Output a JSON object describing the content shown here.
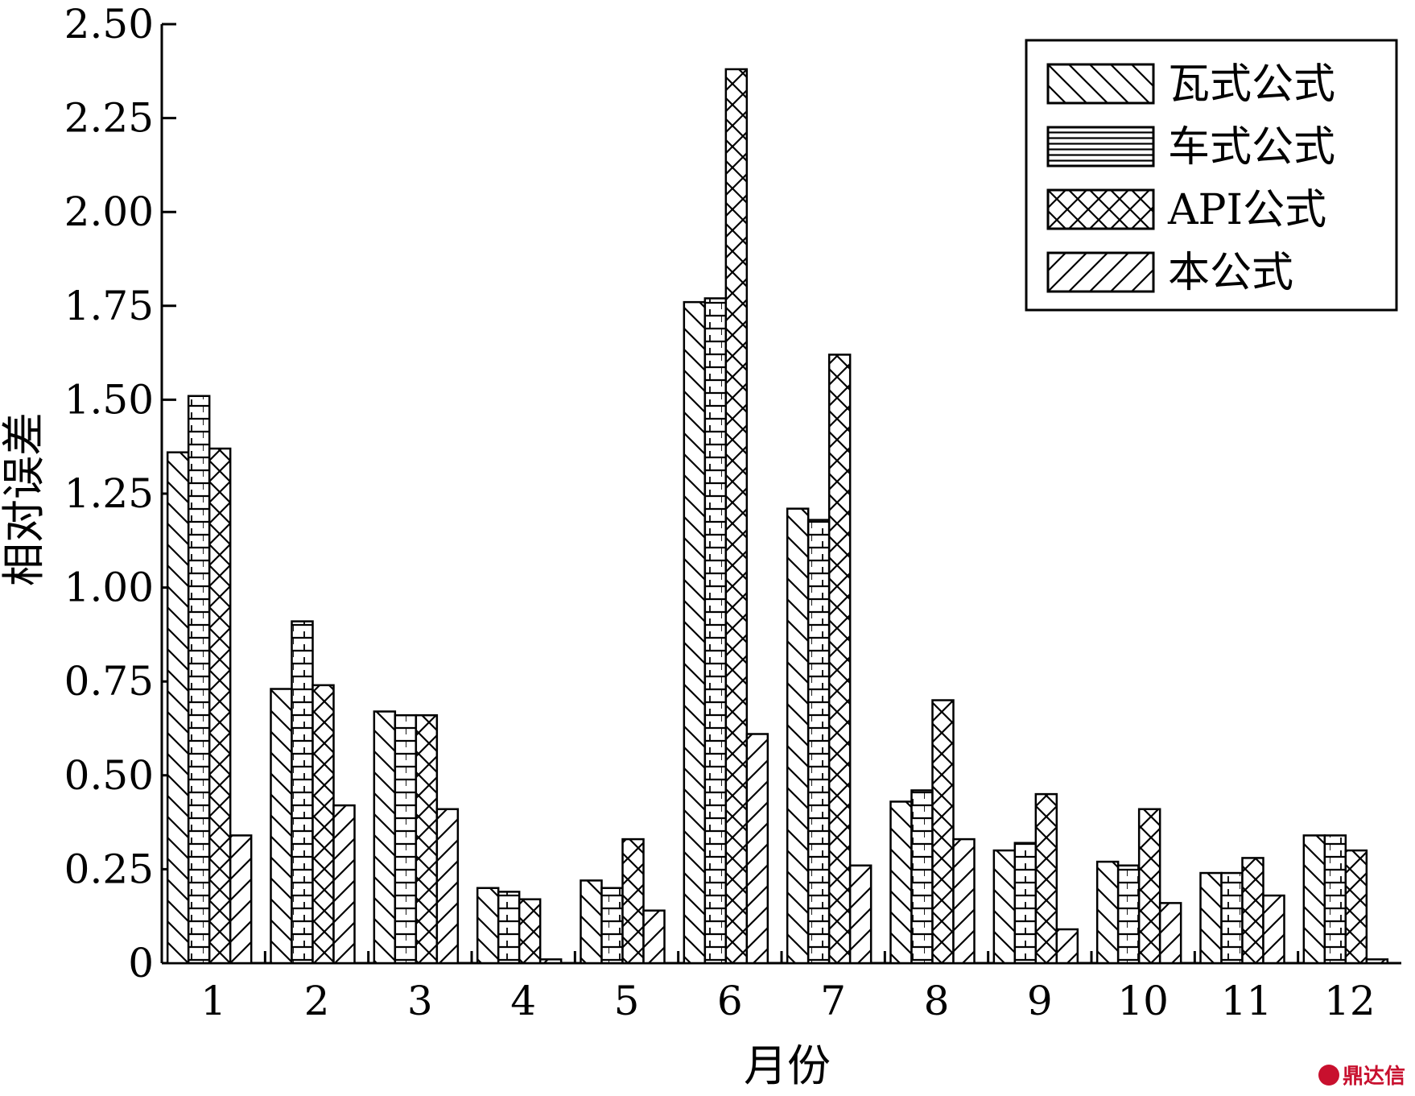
{
  "chart_data": {
    "type": "bar",
    "title": "",
    "xlabel": "月份",
    "ylabel": "相对误差",
    "ylim": [
      0,
      2.5
    ],
    "yticks": [
      "0",
      "0.25",
      "0.50",
      "0.75",
      "1.00",
      "1.25",
      "1.50",
      "1.75",
      "2.00",
      "2.25",
      "2.50"
    ],
    "categories": [
      "1",
      "2",
      "3",
      "4",
      "5",
      "6",
      "7",
      "8",
      "9",
      "10",
      "11",
      "12"
    ],
    "legend_position": "top-right",
    "grid": false,
    "series": [
      {
        "name": "瓦式公式",
        "pattern": "backslash",
        "values": [
          1.36,
          0.73,
          0.67,
          0.2,
          0.22,
          1.76,
          1.21,
          0.43,
          0.3,
          0.27,
          0.24,
          0.34
        ]
      },
      {
        "name": "车式公式",
        "pattern": "horizontal",
        "values": [
          1.51,
          0.91,
          0.66,
          0.19,
          0.2,
          1.77,
          1.18,
          0.46,
          0.32,
          0.26,
          0.24,
          0.34
        ]
      },
      {
        "name": "API公式",
        "pattern": "crosshatch",
        "values": [
          1.37,
          0.74,
          0.66,
          0.17,
          0.33,
          2.38,
          1.62,
          0.7,
          0.45,
          0.41,
          0.28,
          0.3
        ]
      },
      {
        "name": "本公式",
        "pattern": "slash",
        "values": [
          0.34,
          0.42,
          0.41,
          0.01,
          0.14,
          0.61,
          0.26,
          0.33,
          0.09,
          0.16,
          0.18,
          0.01
        ]
      }
    ]
  },
  "watermark": {
    "text": "鼎达信"
  }
}
